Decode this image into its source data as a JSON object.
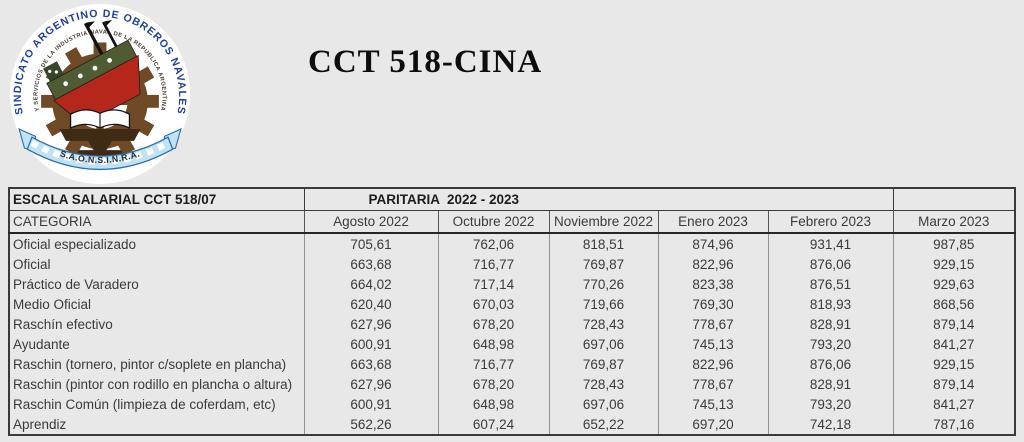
{
  "title": "CCT 518-CINA",
  "logo": {
    "outer_ring_text": "SINDICATO ARGENTINO DE OBREROS NAVALES",
    "inner_ring_text": "Y SERVICIOS DE LA INDUSTRIA NAVAL DE LA REPUBLICA ARGENTINA",
    "banner_text": "S.A.O.N.S.I.N.R.A.",
    "colors": {
      "ring_text_blue": "#1e3f9e",
      "gear_brown": "#6f4a26",
      "hull_red": "#b5271b",
      "deck_green": "#4e5b33",
      "ribbon_blue": "#bfe3f5",
      "ribbon_edge": "#2b6da8",
      "anvil_brown": "#3f2a16"
    }
  },
  "table": {
    "header1": {
      "left": "ESCALA SALARIAL CCT 518/07",
      "paritaria": "PARITARIA  2022 - 2023"
    },
    "category_header": "CATEGORIA",
    "columns": [
      "Agosto 2022",
      "Octubre 2022",
      "Noviembre 2022",
      "Enero 2023",
      "Febrero 2023",
      "Marzo 2023"
    ],
    "rows": [
      {
        "category": "Oficial especializado",
        "values": [
          "705,61",
          "762,06",
          "818,51",
          "874,96",
          "931,41",
          "987,85"
        ]
      },
      {
        "category": "Oficial",
        "values": [
          "663,68",
          "716,77",
          "769,87",
          "822,96",
          "876,06",
          "929,15"
        ]
      },
      {
        "category": "Práctico de Varadero",
        "values": [
          "664,02",
          "717,14",
          "770,26",
          "823,38",
          "876,51",
          "929,63"
        ]
      },
      {
        "category": "Medio Oficial",
        "values": [
          "620,40",
          "670,03",
          "719,66",
          "769,30",
          "818,93",
          "868,56"
        ]
      },
      {
        "category": "Raschín efectivo",
        "values": [
          "627,96",
          "678,20",
          "728,43",
          "778,67",
          "828,91",
          "879,14"
        ]
      },
      {
        "category": "Ayudante",
        "values": [
          "600,91",
          "648,98",
          "697,06",
          "745,13",
          "793,20",
          "841,27"
        ]
      },
      {
        "category": "Raschin (tornero, pintor c/soplete en plancha)",
        "values": [
          "663,68",
          "716,77",
          "769,87",
          "822,96",
          "876,06",
          "929,15"
        ]
      },
      {
        "category": "Raschin (pintor con rodillo en plancha o altura)",
        "values": [
          "627,96",
          "678,20",
          "728,43",
          "778,67",
          "828,91",
          "879,14"
        ]
      },
      {
        "category": "Raschin Común (limpieza de coferdam, etc)",
        "values": [
          "600,91",
          "648,98",
          "697,06",
          "745,13",
          "793,20",
          "841,27"
        ]
      },
      {
        "category": "Aprendiz",
        "values": [
          "562,26",
          "607,24",
          "652,22",
          "697,20",
          "742,18",
          "787,16"
        ]
      }
    ]
  }
}
